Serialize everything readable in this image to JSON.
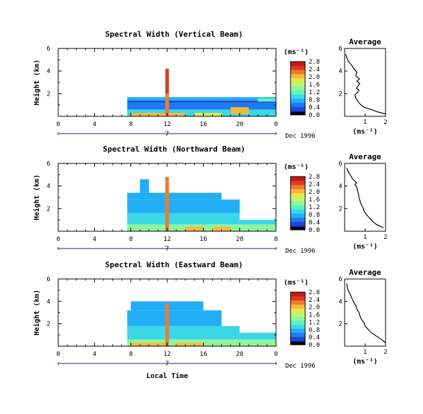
{
  "colors": {
    "colormap": [
      "#1b1ba0",
      "#1c49d8",
      "#1e7cf0",
      "#22aef6",
      "#3ad7e8",
      "#5ff0c0",
      "#8ff79a",
      "#bff572",
      "#e7e74e",
      "#f7b83c",
      "#f07a2e",
      "#e03a22",
      "#c41818"
    ],
    "line": "#000000"
  },
  "colorbar": {
    "unit_label": "(ms⁻¹)"
  },
  "chart_data": [
    {
      "type": "heatmap",
      "title": "Spectral Width (Vertical Beam)",
      "ylabel": "Height (km)",
      "xlim": [
        0,
        24
      ],
      "ylim": [
        0,
        6
      ],
      "x_ticks": [
        "0",
        "4",
        "8",
        "12",
        "16",
        "20",
        "0"
      ],
      "y_ticks": [
        "2",
        "4",
        "6"
      ],
      "date_marker": "7",
      "date_label": "Dec 1996",
      "colorbar_ticks": [
        "0.0",
        "0.4",
        "0.8",
        "1.2",
        "1.6",
        "2.0",
        "2.4",
        "2.8"
      ],
      "colorbar_range": [
        0,
        2.8
      ],
      "data_start_hour": 7.6,
      "data_end_hour": 24,
      "cells": [
        {
          "x0": 7.6,
          "x1": 24,
          "y0": 0,
          "y1": 0.6,
          "v": 1.0
        },
        {
          "x0": 7.6,
          "x1": 24,
          "y0": 0.6,
          "y1": 1.2,
          "v": 0.5
        },
        {
          "x0": 7.6,
          "x1": 24,
          "y0": 1.2,
          "y1": 1.4,
          "v": 0.3
        },
        {
          "x0": 7.6,
          "x1": 24,
          "y0": 1.4,
          "y1": 1.7,
          "v": 0.7
        },
        {
          "x0": 8,
          "x1": 14,
          "y0": 0,
          "y1": 0.3,
          "v": 2.0
        },
        {
          "x0": 15,
          "x1": 18,
          "y0": 0,
          "y1": 0.3,
          "v": 1.8
        },
        {
          "x0": 19,
          "x1": 21,
          "y0": 0.2,
          "y1": 0.8,
          "v": 2.1
        },
        {
          "x0": 11.8,
          "x1": 12.2,
          "y0": 2,
          "y1": 4.2,
          "v": 2.6
        },
        {
          "x0": 11.8,
          "x1": 12.2,
          "y0": 0,
          "y1": 2,
          "v": 2.3
        },
        {
          "x0": 22,
          "x1": 24,
          "y0": 1.3,
          "y1": 1.6,
          "v": 1.2
        }
      ],
      "average": {
        "title": "Average",
        "xlabel": "(ms⁻¹)",
        "xlim": [
          0,
          2
        ],
        "ylim": [
          0,
          6
        ],
        "x_ticks": [
          "1",
          "2"
        ],
        "y_ticks": [
          "2",
          "4",
          "6"
        ],
        "profile_x": [
          2.0,
          1.6,
          1.3,
          0.95,
          0.8,
          0.7,
          0.62,
          0.55,
          0.5,
          0.62,
          0.7,
          0.58,
          0.66,
          0.74,
          0.6,
          0.72,
          0.55,
          0.6,
          0.45,
          0.35,
          0.2,
          0.1,
          0.05
        ],
        "profile_y": [
          0.2,
          0.4,
          0.6,
          0.8,
          1.0,
          1.2,
          1.4,
          1.6,
          1.9,
          2.1,
          2.3,
          2.5,
          2.7,
          2.9,
          3.1,
          3.3,
          3.6,
          3.9,
          4.2,
          4.5,
          4.8,
          5.2,
          5.5
        ]
      }
    },
    {
      "type": "heatmap",
      "title": "Spectral Width (Northward Beam)",
      "ylabel": "Height (km)",
      "xlim": [
        0,
        24
      ],
      "ylim": [
        0,
        6
      ],
      "x_ticks": [
        "0",
        "4",
        "8",
        "12",
        "16",
        "20",
        "0"
      ],
      "y_ticks": [
        "2",
        "4",
        "6"
      ],
      "date_marker": "7",
      "date_label": "Dec 1996",
      "colorbar_ticks": [
        "0.0",
        "0.4",
        "0.8",
        "1.2",
        "1.6",
        "2.0",
        "2.4",
        "2.8"
      ],
      "colorbar_range": [
        0,
        2.8
      ],
      "data_start_hour": 7.6,
      "data_end_hour": 24,
      "cells": [
        {
          "x0": 7.6,
          "x1": 24,
          "y0": 0,
          "y1": 0.6,
          "v": 1.3
        },
        {
          "x0": 7.6,
          "x1": 20,
          "y0": 0.6,
          "y1": 1.6,
          "v": 0.9
        },
        {
          "x0": 7.6,
          "x1": 20,
          "y0": 1.6,
          "y1": 2.8,
          "v": 0.8
        },
        {
          "x0": 7.6,
          "x1": 18,
          "y0": 2.8,
          "y1": 3.4,
          "v": 0.6
        },
        {
          "x0": 9,
          "x1": 10,
          "y0": 3.4,
          "y1": 4.6,
          "v": 0.6
        },
        {
          "x0": 11.8,
          "x1": 12.2,
          "y0": 0,
          "y1": 4.8,
          "v": 2.3
        },
        {
          "x0": 14,
          "x1": 16,
          "y0": 0,
          "y1": 0.4,
          "v": 2.0
        },
        {
          "x0": 17,
          "x1": 19,
          "y0": 0,
          "y1": 0.4,
          "v": 2.2
        },
        {
          "x0": 20,
          "x1": 24,
          "y0": 0.6,
          "y1": 1.0,
          "v": 0.9
        }
      ],
      "average": {
        "title": "Average",
        "xlabel": "(ms⁻¹)",
        "xlim": [
          0,
          2
        ],
        "ylim": [
          0,
          6
        ],
        "x_ticks": [
          "1",
          "2"
        ],
        "y_ticks": [
          "2",
          "4",
          "6"
        ],
        "profile_x": [
          1.9,
          1.55,
          1.35,
          1.2,
          1.05,
          0.95,
          0.9,
          0.8,
          0.75,
          0.7,
          0.68,
          0.62,
          0.6,
          0.5,
          0.58,
          0.4,
          0.3,
          0.2,
          0.1
        ],
        "profile_y": [
          0.3,
          0.6,
          0.9,
          1.2,
          1.5,
          1.8,
          2.1,
          2.4,
          2.7,
          3.0,
          3.3,
          3.6,
          3.9,
          4.1,
          4.3,
          4.6,
          4.9,
          5.2,
          5.6
        ]
      }
    },
    {
      "type": "heatmap",
      "title": "Spectral Width (Eastward Beam)",
      "ylabel": "Height (km)",
      "xlabel": "Local Time",
      "xlim": [
        0,
        24
      ],
      "ylim": [
        0,
        6
      ],
      "x_ticks": [
        "0",
        "4",
        "8",
        "12",
        "16",
        "20",
        "0"
      ],
      "y_ticks": [
        "2",
        "4",
        "6"
      ],
      "date_marker": "7",
      "date_label": "Dec 1996",
      "colorbar_ticks": [
        "0.0",
        "0.4",
        "0.8",
        "1.2",
        "1.6",
        "2.0",
        "2.4",
        "2.8"
      ],
      "colorbar_range": [
        0,
        2.8
      ],
      "data_start_hour": 7.6,
      "data_end_hour": 24,
      "cells": [
        {
          "x0": 7.6,
          "x1": 24,
          "y0": 0,
          "y1": 0.6,
          "v": 1.4
        },
        {
          "x0": 7.6,
          "x1": 20,
          "y0": 0.6,
          "y1": 1.8,
          "v": 0.9
        },
        {
          "x0": 7.6,
          "x1": 18,
          "y0": 1.8,
          "y1": 3.2,
          "v": 0.7
        },
        {
          "x0": 8,
          "x1": 16,
          "y0": 3.2,
          "y1": 4.0,
          "v": 0.6
        },
        {
          "x0": 8,
          "x1": 12,
          "y0": 0,
          "y1": 0.3,
          "v": 2.2
        },
        {
          "x0": 11.8,
          "x1": 12.2,
          "y0": 0,
          "y1": 3.8,
          "v": 2.4
        },
        {
          "x0": 13,
          "x1": 16,
          "y0": 0,
          "y1": 0.3,
          "v": 2.0
        },
        {
          "x0": 20,
          "x1": 24,
          "y0": 0.6,
          "y1": 1.2,
          "v": 1.0
        }
      ],
      "average": {
        "title": "Average",
        "xlabel": "(ms⁻¹)",
        "xlim": [
          0,
          2
        ],
        "ylim": [
          0,
          6
        ],
        "x_ticks": [
          "1",
          "2"
        ],
        "y_ticks": [
          "2",
          "4",
          "6"
        ],
        "profile_x": [
          2.0,
          1.8,
          1.55,
          1.3,
          1.15,
          1.0,
          0.95,
          0.82,
          0.75,
          0.7,
          0.6,
          0.55,
          0.45,
          0.35,
          0.25,
          0.15,
          0.1
        ],
        "profile_y": [
          0.3,
          0.6,
          0.9,
          1.2,
          1.5,
          1.8,
          2.1,
          2.4,
          2.7,
          3.0,
          3.3,
          3.6,
          3.9,
          4.3,
          4.7,
          5.1,
          5.6
        ]
      }
    }
  ]
}
